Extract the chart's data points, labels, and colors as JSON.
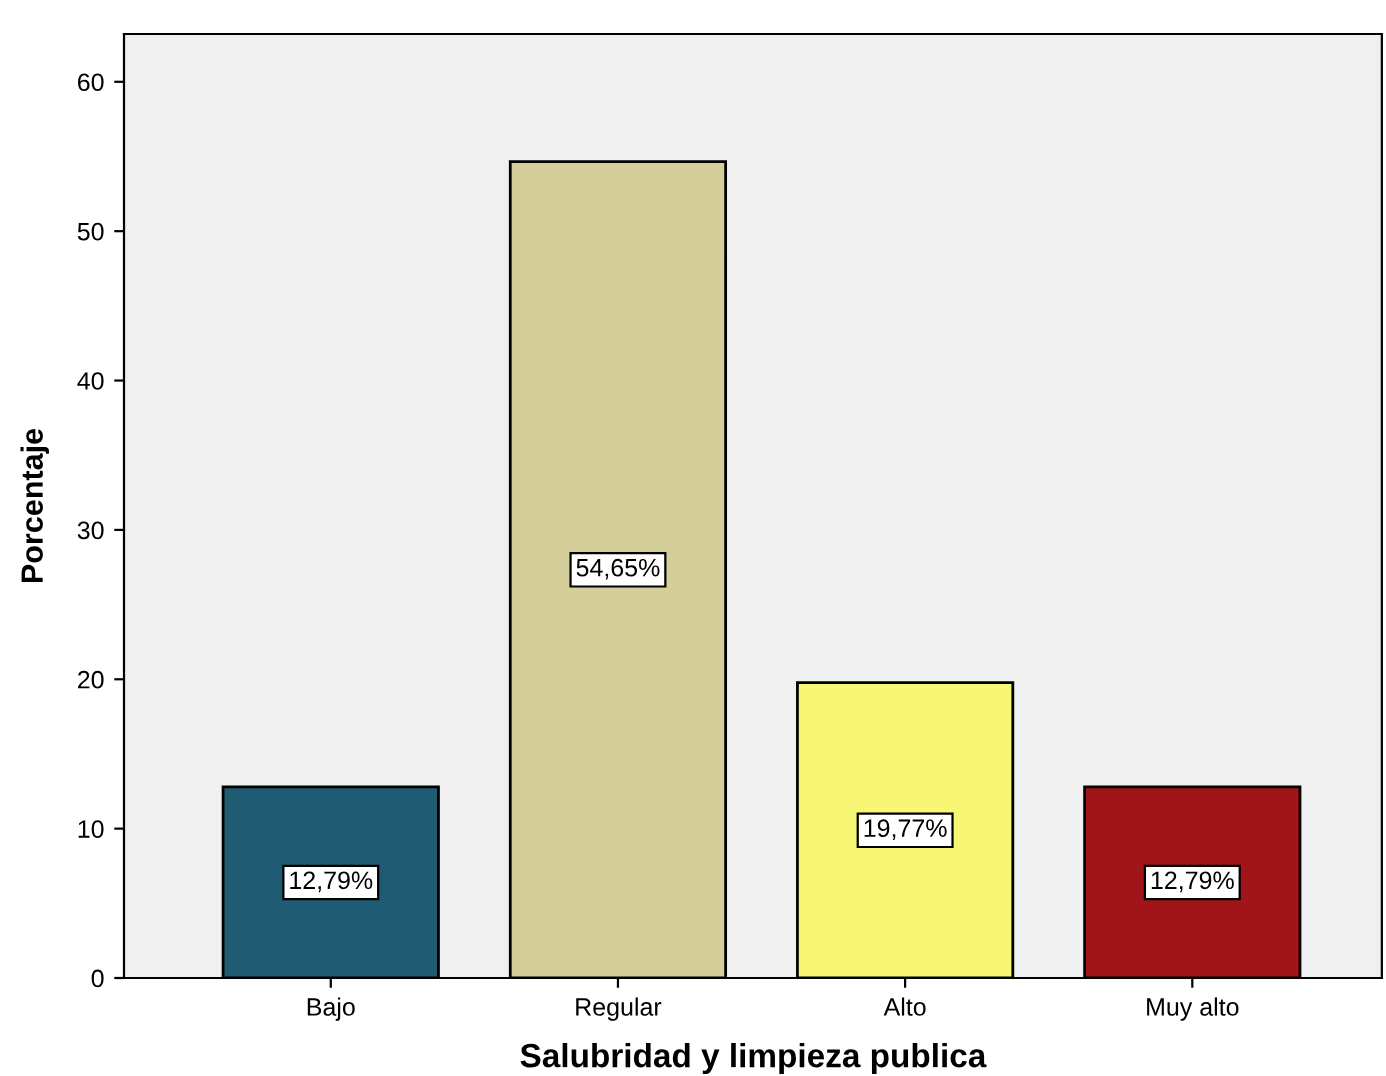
{
  "chart_data": {
    "type": "bar",
    "xlabel": "Salubridad y limpieza publica",
    "ylabel": "Porcentaje",
    "categories": [
      "Bajo",
      "Regular",
      "Alto",
      "Muy alto"
    ],
    "values": [
      12.79,
      54.65,
      19.77,
      12.79
    ],
    "colors": [
      "#1f5c73",
      "#d4cf9a",
      "#f8f675",
      "#a01519"
    ],
    "value_labels": [
      "12,79%",
      "54,65%",
      "19,77%",
      "12,79%"
    ],
    "ylim": [
      0,
      63.2
    ],
    "yticks": [
      0,
      10,
      20,
      30,
      40,
      50,
      60
    ],
    "grid": false
  }
}
